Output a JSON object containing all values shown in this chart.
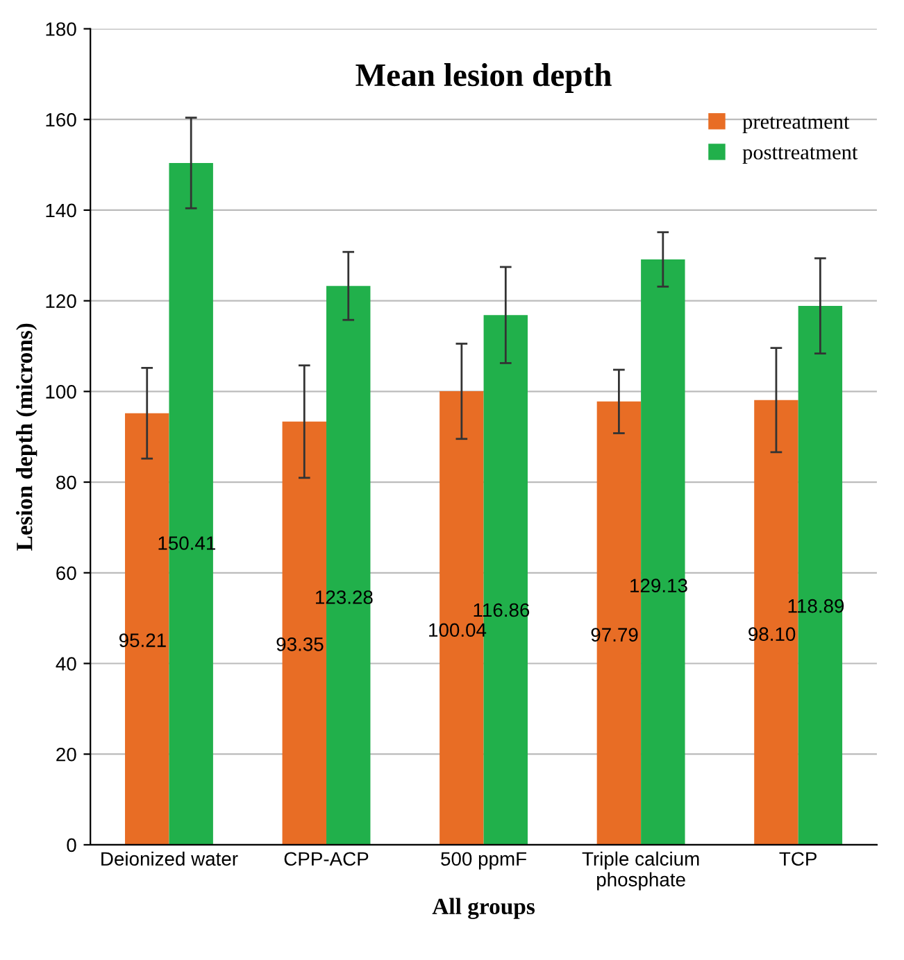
{
  "chart_data": {
    "type": "bar",
    "title": "Mean lesion depth",
    "xlabel": "All groups",
    "ylabel": "Lesion depth (microns)",
    "categories": [
      "Deionized water",
      "CPP-ACP",
      "500 ppmF",
      "Triple calcium\nphosphate",
      "TCP"
    ],
    "series": [
      {
        "name": "pretreatment",
        "color": "#e86d25",
        "values": [
          95.21,
          93.35,
          100.04,
          97.79,
          98.1
        ],
        "errors": [
          10,
          12.4,
          10.5,
          7,
          11.5
        ],
        "value_labels": [
          "95.21",
          "93.35",
          "100.04",
          "97.79",
          "98.10"
        ]
      },
      {
        "name": "posttreatment",
        "color": "#21b04b",
        "values": [
          150.41,
          123.28,
          116.86,
          129.13,
          118.89
        ],
        "errors": [
          10,
          7.5,
          10.6,
          6,
          10.5
        ],
        "value_labels": [
          "150.41",
          "123.28",
          "116.86",
          "129.13",
          "118.89"
        ]
      }
    ],
    "ylim": [
      0,
      180
    ],
    "yticks": [
      0,
      20,
      40,
      60,
      80,
      100,
      120,
      140,
      160,
      180
    ],
    "grid": "y",
    "legend": "top right"
  }
}
